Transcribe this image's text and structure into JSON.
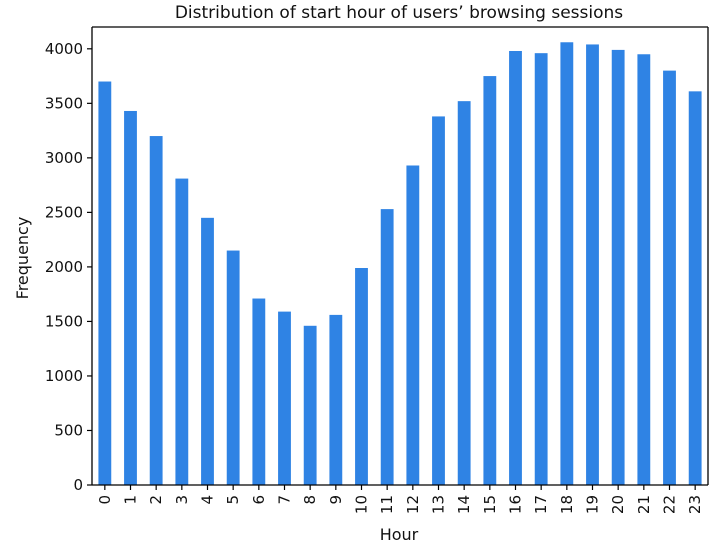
{
  "chart_data": {
    "type": "bar",
    "title": "Distribution of start hour of users’ browsing sessions",
    "xlabel": "Hour",
    "ylabel": "Frequency",
    "categories": [
      "0",
      "1",
      "2",
      "3",
      "4",
      "5",
      "6",
      "7",
      "8",
      "9",
      "10",
      "11",
      "12",
      "13",
      "14",
      "15",
      "16",
      "17",
      "18",
      "19",
      "20",
      "21",
      "22",
      "23"
    ],
    "values": [
      3700,
      3430,
      3200,
      2810,
      2450,
      2150,
      1710,
      1590,
      1460,
      1560,
      1990,
      2530,
      2930,
      3380,
      3520,
      3750,
      3980,
      3960,
      4060,
      4040,
      3990,
      3950,
      3800,
      3610
    ],
    "ylim": [
      0,
      4200
    ],
    "yticks": [
      0,
      500,
      1000,
      1500,
      2000,
      2500,
      3000,
      3500,
      4000
    ],
    "grid": false,
    "legend": "none",
    "bar_color": "#2f83e4",
    "axis_color": "#000000"
  }
}
